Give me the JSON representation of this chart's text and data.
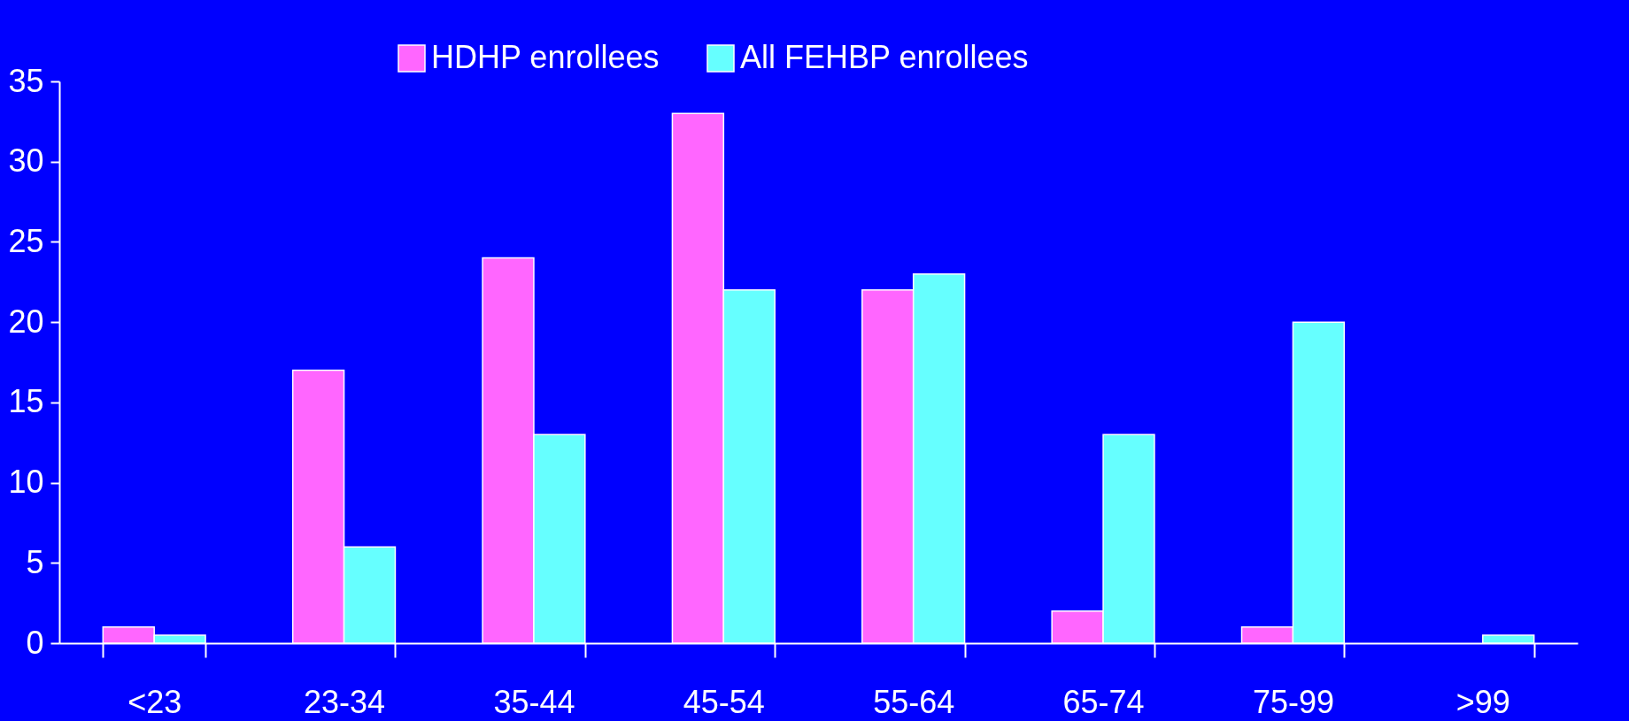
{
  "chart_data": {
    "type": "bar",
    "categories": [
      "<23",
      "23-34",
      "35-44",
      "45-54",
      "55-64",
      "65-74",
      "75-99",
      ">99"
    ],
    "series": [
      {
        "name": "HDHP enrollees",
        "color": "#ff66ff",
        "values": [
          1,
          17,
          24,
          33,
          22,
          2,
          1,
          null
        ]
      },
      {
        "name": "All FEHBP enrollees",
        "color": "#66ffff",
        "values": [
          0.5,
          6,
          13,
          22,
          23,
          13,
          20,
          0.5
        ]
      }
    ],
    "ylim": [
      0,
      35
    ],
    "yticks": [
      0,
      5,
      10,
      15,
      20,
      25,
      30,
      35
    ],
    "grid": false,
    "legend": "top"
  }
}
